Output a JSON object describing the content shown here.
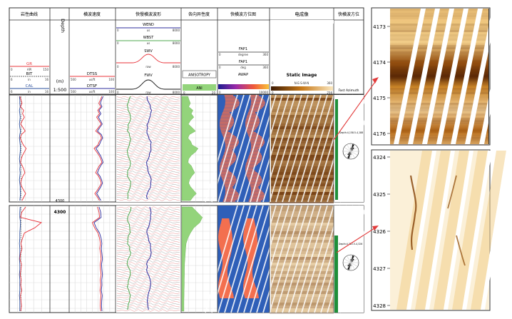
{
  "header": {
    "track_titles": [
      "岩性曲线",
      "Depth",
      "横波速度",
      "快慢横波波形",
      "各向异性度",
      "快横波方位图",
      "电成像",
      "快横波方位"
    ],
    "depth_unit": "(m)",
    "depth_scale": "1:500"
  },
  "curve_scales": {
    "gr": {
      "name": "GR",
      "unit": "API",
      "min": "0",
      "max": "150"
    },
    "bit": {
      "name": "BIT",
      "unit": "in",
      "min": "6",
      "max": "16"
    },
    "cal": {
      "name": "CAL",
      "unit": "in",
      "min": "6",
      "max": "16"
    },
    "dtss": {
      "name": "DTSS",
      "unit": "us/ft",
      "min": "500",
      "max": "100"
    },
    "dtsf": {
      "name": "DTSF",
      "unit": "us/ft",
      "min": "500",
      "max": "100"
    },
    "wend": {
      "name": "WEND",
      "unit": "us",
      "min": "0",
      "max": "8000"
    },
    "wbst": {
      "name": "WBST",
      "unit": "us",
      "min": "0",
      "max": "8000"
    },
    "swv": {
      "name": "SWV",
      "unit": "raw",
      "min": "0",
      "max": "8000"
    },
    "fwv": {
      "name": "FWV",
      "unit": "raw",
      "min": "0",
      "max": "8000"
    },
    "anisotropy": {
      "name": "ANISOTROPY",
      "box_label": "ANI",
      "min": "0",
      "max": "20"
    },
    "fap1a": {
      "name": "FAP1",
      "unit": "degree",
      "min": "0",
      "max": "360"
    },
    "fap1b": {
      "name": "FAP1",
      "unit": "deg",
      "min": "0",
      "max": "360"
    },
    "awap": {
      "name": "AWAP",
      "min": "0",
      "max": "10000"
    },
    "static_image": {
      "name": "Static Image",
      "orientation": "N-E-S-W-N",
      "min": "0",
      "max": "256",
      "scale_max": "360"
    },
    "fast_azimuth": {
      "name": "Fast Azimuth"
    }
  },
  "depth_markers": [
    "4300",
    "4300"
  ],
  "rose_labels": [
    "Depth:4,158.5-4,188",
    "Depth:4,322.5-4,326"
  ],
  "zoom_top": {
    "depth_ticks": [
      "4173",
      "4174",
      "4175",
      "4176"
    ]
  },
  "zoom_bottom": {
    "depth_ticks": [
      "4324",
      "4325",
      "4326",
      "4327",
      "4328"
    ]
  },
  "colors": {
    "gr": "#e8333a",
    "cal": "#2a4f9c",
    "dtss": "#e8333a",
    "dtsf": "#2d2d9e",
    "fwv_green": "#4fa84f",
    "anisotropy_fill": "#93d47b",
    "awap_background": "#2f5fb8",
    "awap_fill": "#f36f4f",
    "static_bright": "#f6d9a0",
    "static_dark": "#6a3308",
    "annotation_arrow": "#e23b3b",
    "track_accent_green": "#1f8f3a"
  },
  "chart_data": [
    {
      "type": "line",
      "track": "lithology-upper",
      "depth_range": [
        "4140",
        "4300"
      ],
      "series": [
        {
          "name": "GR",
          "values": [
            38,
            42,
            46,
            40,
            52,
            48,
            55,
            47,
            41,
            50,
            58,
            44,
            39,
            45,
            51,
            62,
            55,
            48,
            43,
            40,
            47,
            53,
            57,
            49,
            44,
            41,
            45,
            52,
            60,
            53,
            46
          ]
        },
        {
          "name": "CAL",
          "values": [
            8.4,
            8.5,
            8.5,
            8.6,
            8.4,
            8.5,
            8.6,
            8.5,
            8.4,
            8.5,
            8.7,
            8.5,
            8.4,
            8.5,
            8.6,
            8.7,
            8.6,
            8.5,
            8.4,
            8.5,
            8.6,
            8.5,
            8.6,
            8.5,
            8.4,
            8.5,
            8.6,
            8.6,
            8.7,
            8.6,
            8.5
          ]
        }
      ]
    },
    {
      "type": "line",
      "track": "shear-velocity-upper",
      "depth_range": [
        "4140",
        "4300"
      ],
      "series": [
        {
          "name": "DTSS",
          "values": [
            215,
            228,
            242,
            225,
            252,
            236,
            262,
            240,
            222,
            246,
            270,
            232,
            218,
            238,
            250,
            285,
            262,
            240,
            226,
            215,
            238,
            256,
            270,
            244,
            230,
            220,
            236,
            255,
            278,
            255,
            236
          ]
        },
        {
          "name": "DTSF",
          "values": [
            205,
            218,
            228,
            214,
            240,
            224,
            246,
            228,
            212,
            234,
            255,
            220,
            208,
            226,
            238,
            268,
            248,
            228,
            214,
            205,
            226,
            242,
            255,
            232,
            218,
            210,
            224,
            242,
            262,
            242,
            224
          ]
        }
      ]
    },
    {
      "type": "area",
      "track": "anisotropy-upper",
      "depth_range": [
        "4140",
        "4300"
      ],
      "series": [
        {
          "name": "ANISOTROPY",
          "values": [
            3.5,
            4.2,
            5.0,
            4.0,
            6.5,
            5.5,
            7.0,
            5.0,
            3.8,
            6.0,
            8.0,
            4.5,
            3.5,
            5.2,
            6.0,
            9.5,
            8.0,
            5.5,
            4.0,
            3.5,
            5.5,
            6.5,
            7.5,
            5.8,
            4.5,
            4.0,
            5.0,
            6.8,
            8.5,
            6.5,
            5.0
          ]
        }
      ]
    },
    {
      "type": "line",
      "track": "lithology-lower",
      "depth_range": [
        "4300",
        "4360"
      ],
      "series": [
        {
          "name": "GR",
          "values": [
            60,
            45,
            40,
            120,
            95,
            55,
            48,
            42,
            46,
            40,
            38,
            44,
            42,
            39,
            43,
            41,
            45,
            40,
            42,
            44,
            41
          ]
        },
        {
          "name": "CAL",
          "values": [
            8.6,
            8.5,
            8.5,
            8.7,
            8.6,
            8.5,
            8.5,
            8.4,
            8.5,
            8.5,
            8.4,
            8.5,
            8.5,
            8.4,
            8.5,
            8.5,
            8.5,
            8.4,
            8.5,
            8.5,
            8.5
          ]
        }
      ]
    },
    {
      "type": "line",
      "track": "shear-velocity-lower",
      "depth_range": [
        "4300",
        "4360"
      ],
      "series": [
        {
          "name": "DTSS",
          "values": [
            255,
            240,
            236,
            300,
            280,
            250,
            236,
            228,
            234,
            226,
            222,
            230,
            228,
            222,
            230,
            226,
            232,
            224,
            228,
            230,
            226
          ]
        },
        {
          "name": "DTSF",
          "values": [
            240,
            226,
            222,
            285,
            266,
            236,
            222,
            215,
            220,
            214,
            210,
            218,
            215,
            210,
            216,
            214,
            220,
            212,
            216,
            218,
            214
          ]
        }
      ]
    },
    {
      "type": "area",
      "track": "anisotropy-lower",
      "depth_range": [
        "4300",
        "4360"
      ],
      "series": [
        {
          "name": "ANISOTROPY",
          "values": [
            6.0,
            9.0,
            12.0,
            10.5,
            7.0,
            5.0,
            3.5,
            2.5,
            2.2,
            2.0,
            1.8,
            1.6,
            1.5,
            1.5,
            1.4,
            1.4,
            1.3,
            1.3,
            1.2,
            1.2,
            1.2
          ]
        }
      ]
    }
  ]
}
